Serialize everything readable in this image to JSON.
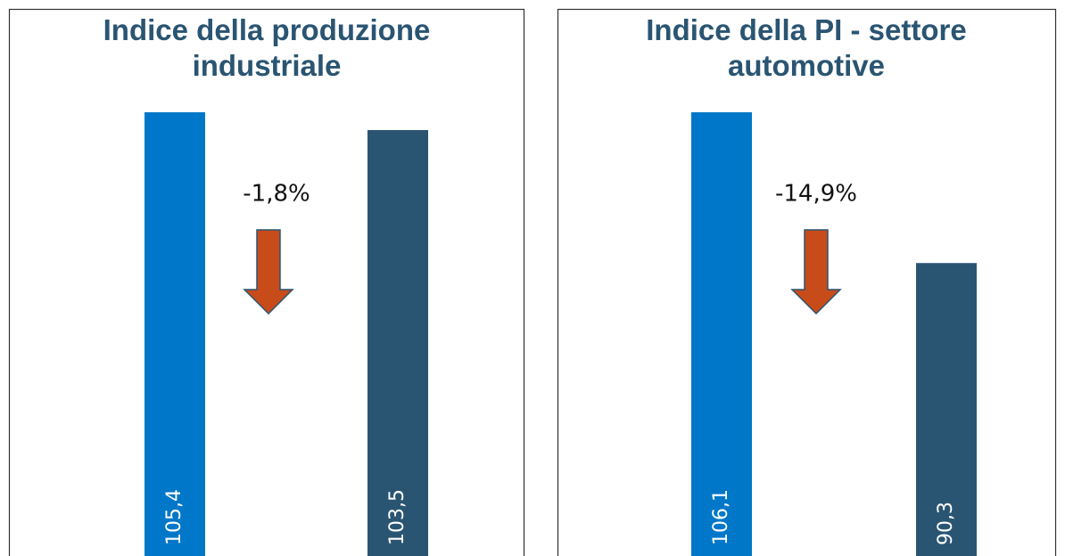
{
  "chart_data": [
    {
      "type": "bar",
      "title": "Indice della produzione industriale",
      "categories": [
        null,
        null
      ],
      "values": [
        105.4,
        103.5
      ],
      "value_labels": [
        "105,4",
        "103,5"
      ],
      "colors": [
        "#0077c8",
        "#2a5572"
      ],
      "ylim": [
        58,
        105.4
      ],
      "annotation": "-1,8%",
      "arrow_color": "#c84b1a"
    },
    {
      "type": "bar",
      "title": "Indice della PI - settore automotive",
      "categories": [
        null,
        null
      ],
      "values": [
        106.1,
        90.3
      ],
      "value_labels": [
        "106,1",
        "90,3"
      ],
      "colors": [
        "#0077c8",
        "#2a5572"
      ],
      "ylim": [
        59.6,
        106.1
      ],
      "annotation": "-14,9%",
      "arrow_color": "#c84b1a"
    }
  ]
}
